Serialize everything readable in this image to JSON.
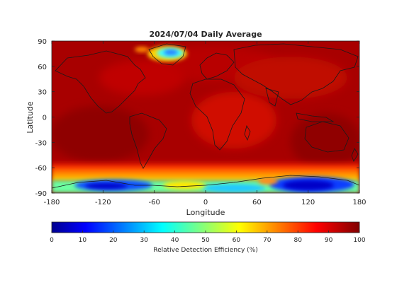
{
  "chart_data": {
    "type": "heatmap",
    "title": "2024/07/04 Daily Average",
    "xlabel": "Longitude",
    "ylabel": "Latitude",
    "xlim": [
      -180,
      180
    ],
    "ylim": [
      -90,
      90
    ],
    "x_ticks": [
      -180,
      -120,
      -60,
      0,
      60,
      120,
      180
    ],
    "y_ticks": [
      -90,
      -60,
      -30,
      0,
      30,
      60,
      90
    ],
    "colorbar": {
      "label": "Relative Detection Efficiency (%)",
      "range": [
        0,
        100
      ],
      "ticks": [
        0,
        10,
        20,
        30,
        40,
        50,
        60,
        70,
        80,
        90,
        100
      ],
      "colormap": "jet"
    },
    "background_value": 97,
    "features": [
      {
        "region": "Greenland",
        "lon": [
          -60,
          -20
        ],
        "lat": [
          60,
          85
        ],
        "min_value": 35
      },
      {
        "region": "Antarctica (Ross/West sector)",
        "lon": [
          -130,
          -80
        ],
        "lat": [
          -90,
          -72
        ],
        "min_value": 15
      },
      {
        "region": "Antarctica (East sector)",
        "lon": [
          60,
          170
        ],
        "lat": [
          -90,
          -70
        ],
        "min_value": 10
      },
      {
        "region": "Southern Ocean band",
        "lon": [
          -180,
          180
        ],
        "lat": [
          -75,
          -60
        ],
        "min_value": 70
      }
    ]
  },
  "colors": {
    "background_dark_red": "#8b0000",
    "map_red": "#b50000",
    "coastline": "#1a1a1a"
  }
}
